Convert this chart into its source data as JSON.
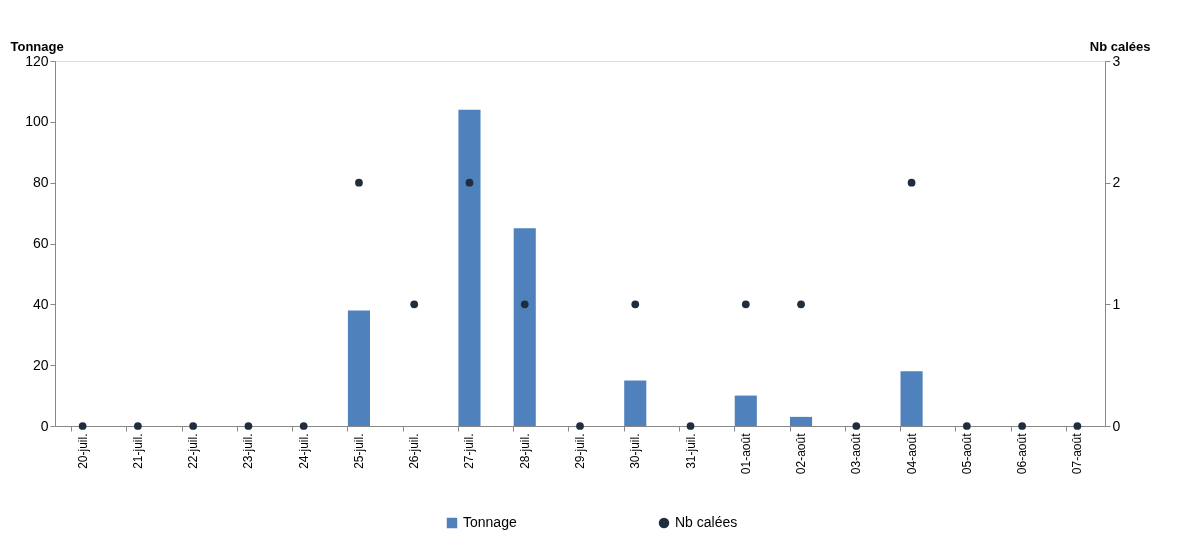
{
  "chart_data": {
    "type": "bar",
    "ylabel": "Tonnage",
    "y2label": "Nb calées",
    "categories": [
      "20-juil.",
      "21-juil.",
      "22-juil.",
      "23-juil.",
      "24-juil.",
      "25-juil.",
      "26-juil.",
      "27-juil.",
      "28-juil.",
      "29-juil.",
      "30-juil.",
      "31-juil.",
      "01-août",
      "02-août",
      "03-août",
      "04-août",
      "05-août",
      "06-août",
      "07-août"
    ],
    "series": [
      {
        "name": "Tonnage",
        "color": "#4f81bd",
        "values": [
          0,
          0,
          0,
          0,
          0,
          38,
          0,
          104,
          65,
          0,
          15,
          0,
          10,
          3,
          0,
          18,
          0,
          0,
          0
        ]
      },
      {
        "name": "Nb calées",
        "type": "scatter",
        "axis": "y2",
        "color": "#1f2d3d",
        "marker": "circle",
        "values": [
          0,
          0,
          0,
          0,
          0,
          2,
          1,
          2,
          1,
          0,
          1,
          0,
          1,
          1,
          0,
          2,
          0,
          0,
          0
        ]
      }
    ],
    "ylim": [
      0,
      120
    ],
    "yticks": [
      0,
      20,
      40,
      60,
      80,
      100,
      120
    ],
    "y2lim": [
      0,
      3
    ],
    "y2ticks": [
      0,
      1,
      2,
      3
    ],
    "grid": false,
    "legend": "bottom"
  }
}
